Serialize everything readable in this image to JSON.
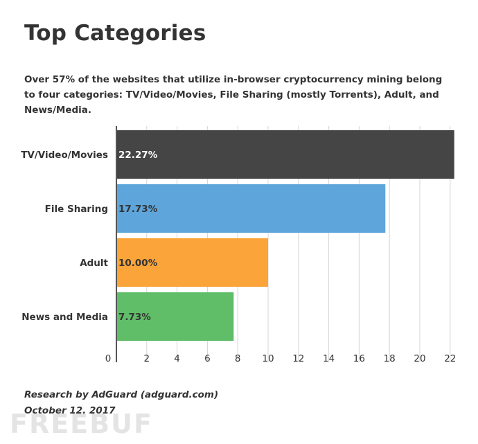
{
  "header": {
    "title": "Top Categories",
    "subtitle": "Over 57% of the websites that utilize in-browser cryptocurrency mining belong to four categories: TV/Video/Movies, File Sharing (mostly Torrents), Adult, and News/Media."
  },
  "chart_data": {
    "type": "bar",
    "orientation": "horizontal",
    "categories": [
      "TV/Video/Movies",
      "File Sharing",
      "Adult",
      "News and Media"
    ],
    "values": [
      22.27,
      17.73,
      10.0,
      7.73
    ],
    "data_labels": [
      "22.27%",
      "17.73%",
      "10.00%",
      "7.73%"
    ],
    "colors": [
      "#454545",
      "#5da5da",
      "#faa43a",
      "#60bd68"
    ],
    "label_colors": [
      "#ffffff",
      "#333333",
      "#333333",
      "#333333"
    ],
    "xlim": [
      0,
      22.5
    ],
    "x_ticks": [
      0,
      2,
      4,
      6,
      8,
      10,
      12,
      14,
      16,
      18,
      20,
      22
    ],
    "grid": true
  },
  "footer": {
    "credit": "Research by AdGuard (adguard.com)",
    "date": "October 12, 2017"
  },
  "watermark": "FREEBUF"
}
